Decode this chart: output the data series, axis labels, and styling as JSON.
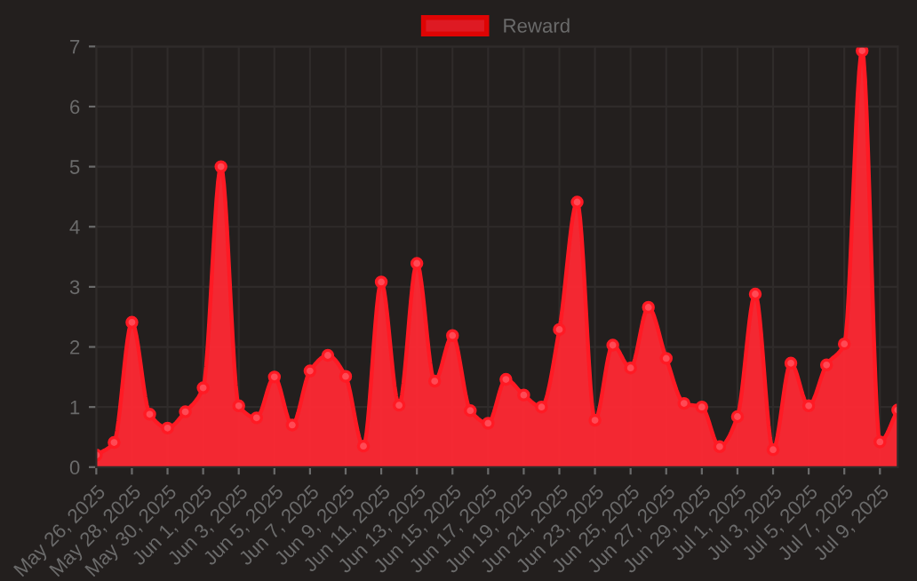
{
  "chart_data": {
    "type": "area",
    "x": [
      "2025-05-26",
      "2025-05-27",
      "2025-05-28",
      "2025-05-29",
      "2025-05-30",
      "2025-05-31",
      "2025-06-01",
      "2025-06-02",
      "2025-06-03",
      "2025-06-04",
      "2025-06-05",
      "2025-06-06",
      "2025-06-07",
      "2025-06-08",
      "2025-06-09",
      "2025-06-10",
      "2025-06-11",
      "2025-06-12",
      "2025-06-13",
      "2025-06-14",
      "2025-06-15",
      "2025-06-16",
      "2025-06-17",
      "2025-06-18",
      "2025-06-19",
      "2025-06-20",
      "2025-06-21",
      "2025-06-22",
      "2025-06-23",
      "2025-06-24",
      "2025-06-25",
      "2025-06-26",
      "2025-06-27",
      "2025-06-28",
      "2025-06-29",
      "2025-06-30",
      "2025-07-01",
      "2025-07-02",
      "2025-07-03",
      "2025-07-04",
      "2025-07-05",
      "2025-07-06",
      "2025-07-07",
      "2025-07-08",
      "2025-07-09",
      "2025-07-10"
    ],
    "series": [
      {
        "name": "Reward",
        "color": "#ff1a24",
        "values": [
          0.2,
          0.41,
          2.41,
          0.88,
          0.65,
          0.92,
          1.32,
          5.0,
          1.02,
          0.82,
          1.5,
          0.7,
          1.6,
          1.86,
          1.51,
          0.35,
          3.08,
          1.03,
          3.39,
          1.43,
          2.19,
          0.94,
          0.73,
          1.46,
          1.2,
          1.0,
          2.29,
          4.41,
          0.78,
          2.03,
          1.65,
          2.66,
          1.81,
          1.06,
          1.0,
          0.34,
          0.84,
          2.88,
          0.29,
          1.73,
          1.02,
          1.7,
          2.05,
          6.93,
          0.42,
          0.95
        ]
      }
    ],
    "xlim": [
      "2025-05-26",
      "2025-07-10"
    ],
    "xticks": [
      {
        "value": "2025-05-26",
        "label": "May 26, 2025"
      },
      {
        "value": "2025-05-28",
        "label": "May 28, 2025"
      },
      {
        "value": "2025-05-30",
        "label": "May 30, 2025"
      },
      {
        "value": "2025-06-01",
        "label": "Jun 1, 2025"
      },
      {
        "value": "2025-06-03",
        "label": "Jun 3, 2025"
      },
      {
        "value": "2025-06-05",
        "label": "Jun 5, 2025"
      },
      {
        "value": "2025-06-07",
        "label": "Jun 7, 2025"
      },
      {
        "value": "2025-06-09",
        "label": "Jun 9, 2025"
      },
      {
        "value": "2025-06-11",
        "label": "Jun 11, 2025"
      },
      {
        "value": "2025-06-13",
        "label": "Jun 13, 2025"
      },
      {
        "value": "2025-06-15",
        "label": "Jun 15, 2025"
      },
      {
        "value": "2025-06-17",
        "label": "Jun 17, 2025"
      },
      {
        "value": "2025-06-19",
        "label": "Jun 19, 2025"
      },
      {
        "value": "2025-06-21",
        "label": "Jun 21, 2025"
      },
      {
        "value": "2025-06-23",
        "label": "Jun 23, 2025"
      },
      {
        "value": "2025-06-25",
        "label": "Jun 25, 2025"
      },
      {
        "value": "2025-06-27",
        "label": "Jun 27, 2025"
      },
      {
        "value": "2025-06-29",
        "label": "Jun 29, 2025"
      },
      {
        "value": "2025-07-01",
        "label": "Jul 1, 2025"
      },
      {
        "value": "2025-07-03",
        "label": "Jul 3, 2025"
      },
      {
        "value": "2025-07-05",
        "label": "Jul 5, 2025"
      },
      {
        "value": "2025-07-07",
        "label": "Jul 7, 2025"
      },
      {
        "value": "2025-07-09",
        "label": "Jul 9, 2025"
      }
    ],
    "ylim": [
      0,
      7
    ],
    "yticks": [
      0,
      1,
      2,
      3,
      4,
      5,
      6,
      7
    ],
    "grid": true,
    "legend": "top",
    "marker": "circle",
    "line_style": "solid"
  }
}
